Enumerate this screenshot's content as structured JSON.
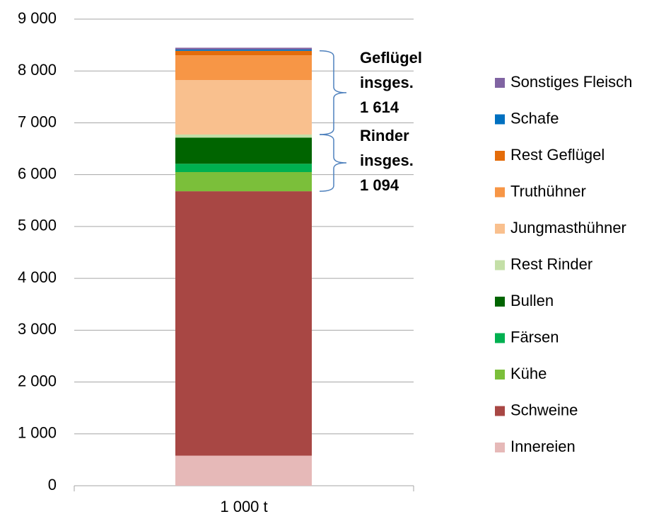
{
  "chart_data": {
    "type": "stacked_bar",
    "categories": [
      "1 000 t"
    ],
    "series": [
      {
        "name": "Innereien",
        "color": "#e6b9b8",
        "values": [
          580
        ]
      },
      {
        "name": "Schweine",
        "color": "#a84744",
        "values": [
          5100
        ]
      },
      {
        "name": "Kühe",
        "color": "#7bbf3a",
        "values": [
          370
        ]
      },
      {
        "name": "Färsen",
        "color": "#00b050",
        "values": [
          160
        ]
      },
      {
        "name": "Bullen",
        "color": "#006400",
        "values": [
          505
        ]
      },
      {
        "name": "Rest Rinder",
        "color": "#c4dfa7",
        "values": [
          59
        ]
      },
      {
        "name": "Jungmasthühner",
        "color": "#f9c08e",
        "values": [
          1050
        ]
      },
      {
        "name": "Truthühner",
        "color": "#f79646",
        "values": [
          478
        ]
      },
      {
        "name": "Rest Geflügel",
        "color": "#e46c0a",
        "values": [
          86
        ]
      },
      {
        "name": "Schafe",
        "color": "#0070c0",
        "values": [
          25
        ]
      },
      {
        "name": "Sonstiges Fleisch",
        "color": "#8064a2",
        "values": [
          35
        ]
      }
    ],
    "ylim": [
      0,
      9000
    ],
    "yticks": [
      0,
      {
        "value": 1000,
        "label": "1 000"
      },
      {
        "value": 2000,
        "label": "2 000"
      },
      {
        "value": 3000,
        "label": "3 000"
      },
      {
        "value": 4000,
        "label": "4 000"
      },
      {
        "value": 5000,
        "label": "5 000"
      },
      {
        "value": 6000,
        "label": "6 000"
      },
      {
        "value": 7000,
        "label": "7 000"
      },
      {
        "value": 8000,
        "label": "8 000"
      },
      {
        "value": 9000,
        "label": "9 000"
      }
    ],
    "grid": true,
    "legend": "right",
    "annotations": [
      {
        "lines": [
          "Geflügel",
          "insges.",
          "1 614"
        ]
      },
      {
        "lines": [
          "Rinder",
          "insges.",
          "1 094"
        ]
      }
    ]
  }
}
